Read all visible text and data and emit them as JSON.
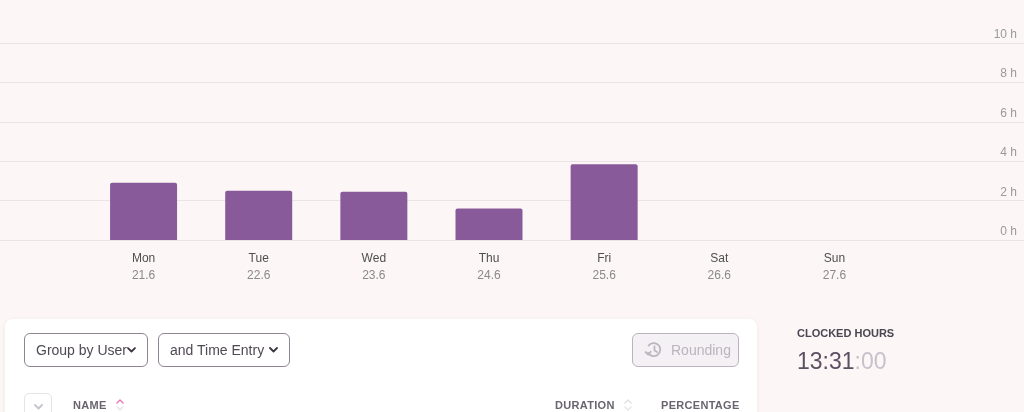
{
  "chart_data": [
    {
      "type": "bar",
      "categories": [
        "Mon\n21.6",
        "Tue\n22.6",
        "Wed\n23.6",
        "Thu\n24.6",
        "Fri\n25.6",
        "Sat\n26.6",
        "Sun\n27.6"
      ],
      "values": [
        2.9,
        2.5,
        2.45,
        1.6,
        3.85,
        0,
        0
      ],
      "color": "#895a99",
      "ylim": [
        0,
        10
      ],
      "yticks": [
        {
          "value": 0,
          "label": "0 h"
        },
        {
          "value": 2,
          "label": "2 h"
        },
        {
          "value": 4,
          "label": "4 h"
        },
        {
          "value": 6,
          "label": "6 h"
        },
        {
          "value": 8,
          "label": "8 h"
        },
        {
          "value": 10,
          "label": "10 h"
        }
      ],
      "grid": "y"
    },
    {
      "type": "other",
      "annotations": [
        "Group by User",
        "and Time Entry",
        "Rounding",
        "NAME",
        "DURATION",
        "PERCENTAGE",
        "CLOCKED HOURS",
        "13:31:00"
      ]
    }
  ]
}
